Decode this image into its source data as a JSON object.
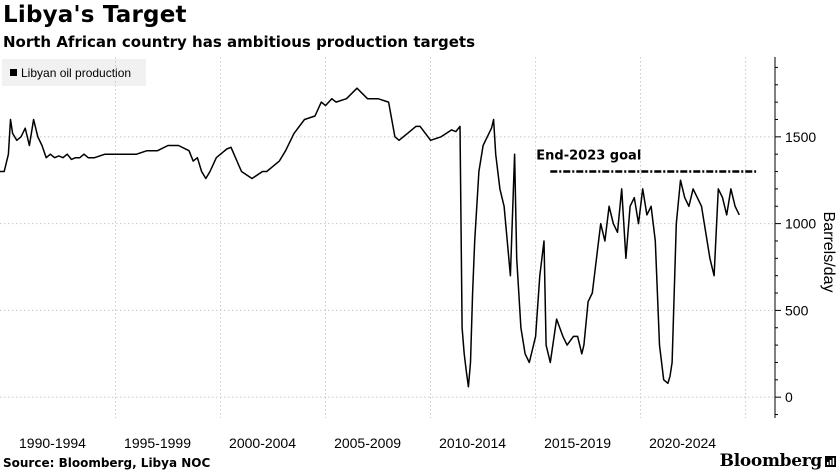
{
  "chart_data": {
    "type": "line",
    "title": "Libya's Target",
    "subtitle": "North African country has ambitious production targets",
    "legend": [
      "Libyan oil production"
    ],
    "ylabel": "Barrels/day",
    "xlabel": "",
    "ylim": [
      -120,
      1960
    ],
    "xlim": [
      1989.0,
      2025.9
    ],
    "yticks": [
      0,
      500,
      1000,
      1500
    ],
    "xtick_labels": [
      {
        "label": "1990-1994",
        "x": 1991.5
      },
      {
        "label": "1995-1999",
        "x": 1996.5
      },
      {
        "label": "2000-2004",
        "x": 2001.5
      },
      {
        "label": "2005-2009",
        "x": 2006.5
      },
      {
        "label": "2010-2014",
        "x": 2011.5
      },
      {
        "label": "2015-2019",
        "x": 2016.5
      },
      {
        "label": "2020-2024",
        "x": 2021.5
      }
    ],
    "vgrid_x": [
      1994.5,
      1999.5,
      2004.5,
      2009.5,
      2014.5,
      2019.5,
      2024.5
    ],
    "annotation": {
      "text": "End-2023 goal",
      "value": 1300,
      "x_start": 2015.2,
      "x_end": 2025.0
    },
    "series": [
      {
        "name": "Libyan oil production",
        "x": [
          1989.0,
          1989.2,
          1989.4,
          1989.5,
          1989.6,
          1989.8,
          1990.0,
          1990.2,
          1990.4,
          1990.6,
          1990.8,
          1991.0,
          1991.2,
          1991.4,
          1991.6,
          1991.8,
          1992.0,
          1992.2,
          1992.4,
          1992.6,
          1992.8,
          1993.0,
          1993.2,
          1993.5,
          1994.0,
          1994.5,
          1995.0,
          1995.5,
          1996.0,
          1996.5,
          1997.0,
          1997.5,
          1998.0,
          1998.2,
          1998.4,
          1998.6,
          1998.8,
          1999.0,
          1999.3,
          1999.5,
          1999.8,
          2000.0,
          2000.5,
          2001.0,
          2001.5,
          2001.7,
          2002.0,
          2002.3,
          2002.6,
          2003.0,
          2003.5,
          2004.0,
          2004.3,
          2004.5,
          2004.8,
          2005.0,
          2005.5,
          2006.0,
          2006.5,
          2007.0,
          2007.5,
          2007.8,
          2008.0,
          2008.2,
          2008.4,
          2008.6,
          2008.8,
          2009.0,
          2009.5,
          2010.0,
          2010.5,
          2010.7,
          2010.9,
          2011.0,
          2011.1,
          2011.2,
          2011.3,
          2011.4,
          2011.5,
          2011.6,
          2011.8,
          2012.0,
          2012.2,
          2012.4,
          2012.5,
          2012.6,
          2012.8,
          2013.0,
          2013.3,
          2013.5,
          2013.6,
          2013.8,
          2014.0,
          2014.2,
          2014.5,
          2014.7,
          2014.9,
          2015.0,
          2015.2,
          2015.5,
          2015.8,
          2016.0,
          2016.3,
          2016.5,
          2016.6,
          2016.7,
          2016.8,
          2017.0,
          2017.2,
          2017.4,
          2017.6,
          2017.8,
          2018.0,
          2018.2,
          2018.4,
          2018.6,
          2018.8,
          2019.0,
          2019.2,
          2019.4,
          2019.6,
          2019.8,
          2020.0,
          2020.1,
          2020.2,
          2020.4,
          2020.6,
          2020.8,
          2020.9,
          2021.0,
          2021.2,
          2021.4,
          2021.6,
          2021.8,
          2022.0,
          2022.2,
          2022.4,
          2022.6,
          2022.8,
          2023.0,
          2023.2,
          2023.4,
          2023.6,
          2023.8,
          2024.0,
          2024.2
        ],
        "values": [
          1300,
          1300,
          1400,
          1600,
          1520,
          1480,
          1500,
          1550,
          1450,
          1600,
          1500,
          1450,
          1380,
          1400,
          1380,
          1390,
          1380,
          1400,
          1370,
          1380,
          1380,
          1400,
          1380,
          1380,
          1400,
          1400,
          1400,
          1400,
          1420,
          1420,
          1450,
          1450,
          1420,
          1360,
          1380,
          1300,
          1260,
          1300,
          1380,
          1400,
          1430,
          1440,
          1300,
          1260,
          1300,
          1300,
          1330,
          1360,
          1420,
          1520,
          1600,
          1620,
          1700,
          1680,
          1720,
          1700,
          1720,
          1780,
          1720,
          1720,
          1700,
          1500,
          1480,
          1500,
          1520,
          1540,
          1560,
          1560,
          1480,
          1500,
          1540,
          1530,
          1560,
          400,
          250,
          150,
          60,
          200,
          600,
          900,
          1300,
          1450,
          1500,
          1550,
          1600,
          1400,
          1200,
          1100,
          700,
          1400,
          800,
          400,
          250,
          200,
          350,
          700,
          900,
          300,
          200,
          450,
          350,
          300,
          350,
          350,
          300,
          250,
          300,
          550,
          600,
          800,
          1000,
          900,
          1100,
          1000,
          950,
          1200,
          800,
          1100,
          1150,
          1000,
          1200,
          1050,
          1100,
          1000,
          900,
          300,
          100,
          80,
          120,
          200,
          1000,
          1250,
          1150,
          1100,
          1200,
          1150,
          1100,
          950,
          800,
          700,
          1200,
          1150,
          1050,
          1200,
          1100,
          1050
        ]
      }
    ]
  },
  "footer": {
    "source": "Source: Bloomberg, Libya NOC",
    "brand": "Bloomberg"
  },
  "colors": {
    "line": "#000000",
    "grid": "#c8c8c8",
    "legend_bg": "#f1f1f1"
  }
}
